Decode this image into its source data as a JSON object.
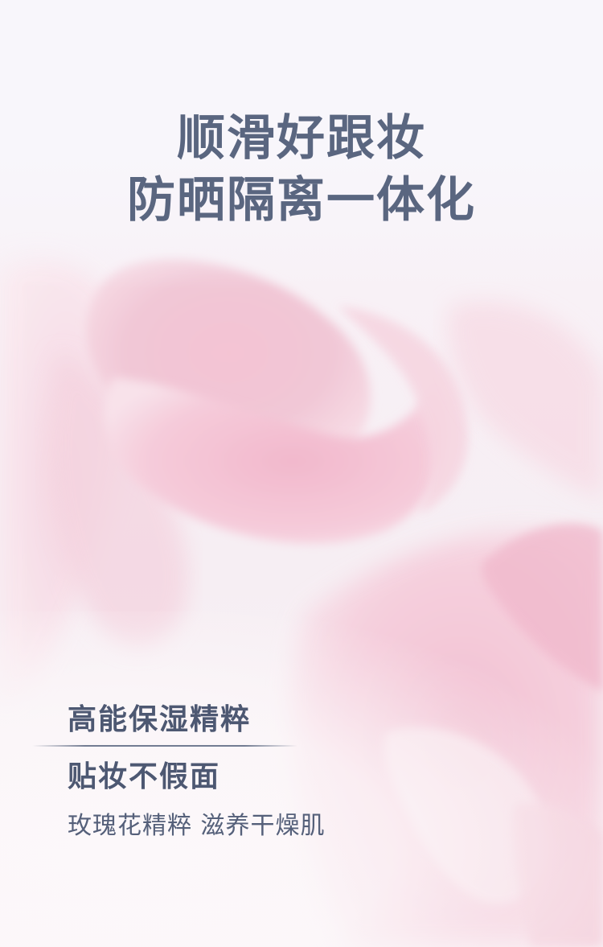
{
  "headline": {
    "line1": "顺滑好跟妆",
    "line2": "防晒隔离一体化"
  },
  "features": {
    "item1": "高能保湿精粹",
    "item2": "贴妆不假面"
  },
  "subline": "玫瑰花精粹 滋养干燥肌",
  "colors": {
    "text": "#5a6680",
    "petal": "#f3c6d5",
    "background": "#f7f2f6"
  }
}
